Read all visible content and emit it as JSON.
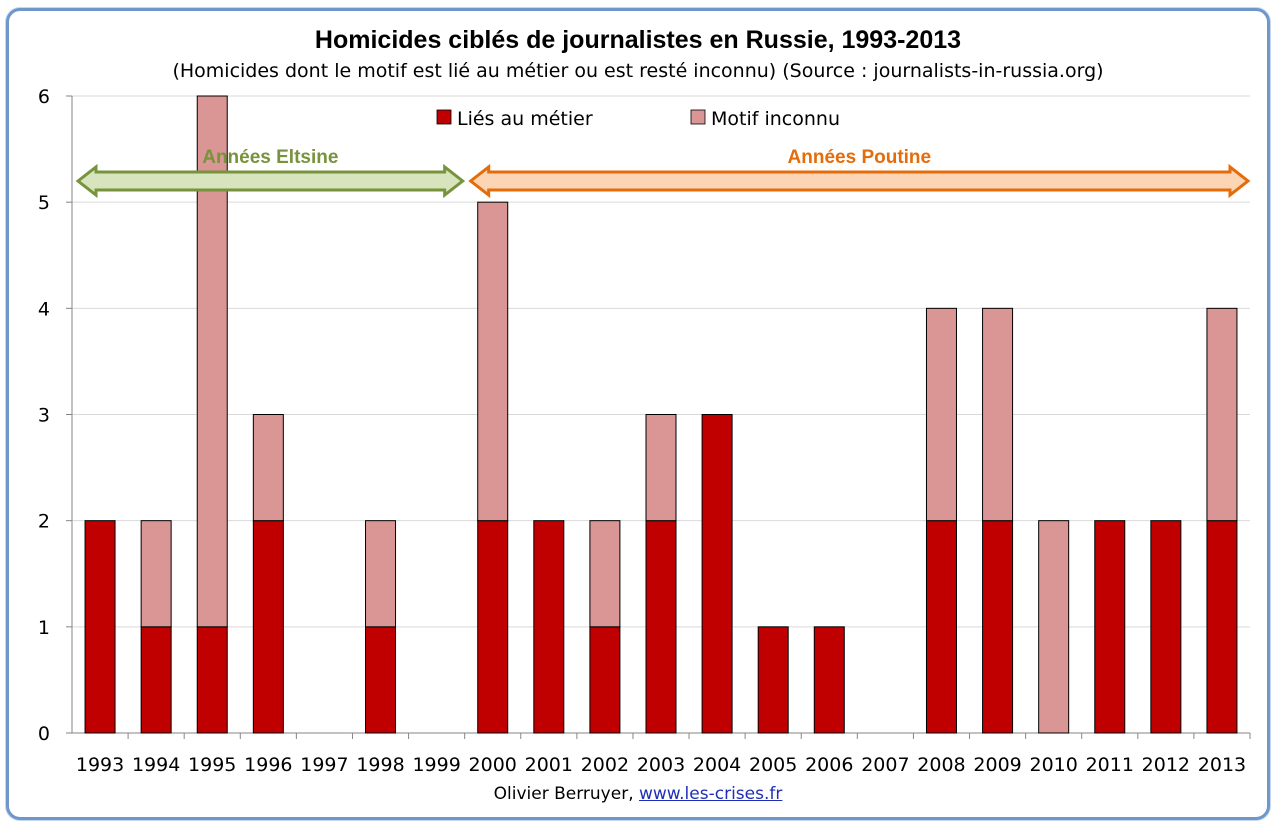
{
  "chart_data": {
    "type": "bar",
    "stacked": true,
    "title": "Homicides ciblés de journalistes en Russie, 1993-2013",
    "subtitle": "(Homicides dont le motif est lié au métier ou est resté inconnu) (Source : journalists-in-russia.org)",
    "categories": [
      "1993",
      "1994",
      "1995",
      "1996",
      "1997",
      "1998",
      "1999",
      "2000",
      "2001",
      "2002",
      "2003",
      "2004",
      "2005",
      "2006",
      "2007",
      "2008",
      "2009",
      "2010",
      "2011",
      "2012",
      "2013"
    ],
    "series": [
      {
        "name": "Liés au métier",
        "color": "#c00000",
        "values": [
          2,
          1,
          1,
          2,
          0,
          1,
          0,
          2,
          2,
          1,
          2,
          3,
          1,
          1,
          0,
          2,
          2,
          0,
          2,
          2,
          2
        ]
      },
      {
        "name": "Motif inconnu",
        "color": "#d99694",
        "values": [
          0,
          1,
          5,
          1,
          0,
          1,
          0,
          3,
          0,
          1,
          1,
          0,
          0,
          0,
          0,
          2,
          2,
          2,
          0,
          0,
          2
        ]
      }
    ],
    "ylim": [
      0,
      6
    ],
    "yticks": [
      0,
      1,
      2,
      3,
      4,
      5,
      6
    ],
    "grid": true,
    "legend": "top-center",
    "annotations": [
      {
        "label": "Années Eltsine",
        "from": "1993",
        "to": "1999",
        "color": "#77933c",
        "fill": "#d7e4bd"
      },
      {
        "label": "Années Poutine",
        "from": "2000",
        "to": "2013",
        "color": "#e46c0a",
        "fill": "#fcd5b5"
      }
    ]
  },
  "credit": {
    "author": "Olivier Berruyer,",
    "link": "www.les-crises.fr"
  }
}
